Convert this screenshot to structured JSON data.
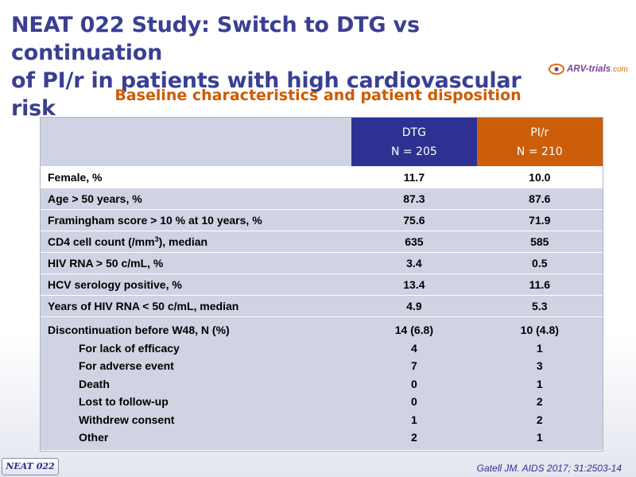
{
  "title_line1": "NEAT 022 Study: Switch to DTG vs continuation",
  "title_line2": "of PI/r in patients with high cardiovascular risk",
  "logo": {
    "name": "ARV-trials",
    "domain": ".com",
    "icon": "arv-trials-logo-icon"
  },
  "subtitle": "Baseline characteristics and patient disposition",
  "table": {
    "columns": [
      {
        "name": "DTG",
        "n": "N = 205",
        "color": "#2e3192"
      },
      {
        "name": "PI/r",
        "n": "N = 210",
        "color": "#cc5e0a"
      }
    ],
    "rows": [
      {
        "label": "Female, %",
        "dtg": "11.7",
        "pir": "10.0"
      },
      {
        "label": "Age > 50 years, %",
        "dtg": "87.3",
        "pir": "87.6"
      },
      {
        "label": "Framingham score > 10 % at 10 years, %",
        "dtg": "75.6",
        "pir": "71.9"
      },
      {
        "label_pre": "CD4 cell count (/mm",
        "label_sup": "3",
        "label_post": "), median",
        "dtg": "635",
        "pir": "585"
      },
      {
        "label": "HIV RNA > 50 c/mL, %",
        "dtg": "3.4",
        "pir": "0.5"
      },
      {
        "label": "HCV serology positive, %",
        "dtg": "13.4",
        "pir": "11.6"
      },
      {
        "label": "Years of HIV RNA < 50 c/mL, median",
        "dtg": "4.9",
        "pir": "5.3"
      }
    ],
    "discontinuation": {
      "label": "Discontinuation before W48, N (%)",
      "dtg": "14 (6.8)",
      "pir": "10 (4.8)",
      "reasons": [
        {
          "label": "For lack of efficacy",
          "dtg": "4",
          "pir": "1"
        },
        {
          "label": "For adverse event",
          "dtg": "7",
          "pir": "3"
        },
        {
          "label": "Death",
          "dtg": "0",
          "pir": "1"
        },
        {
          "label": "Lost to follow-up",
          "dtg": "0",
          "pir": "2"
        },
        {
          "label": "Withdrew consent",
          "dtg": "1",
          "pir": "2"
        },
        {
          "label": "Other",
          "dtg": "2",
          "pir": "1"
        }
      ]
    }
  },
  "badge": "NEAT 022",
  "citation": "Gatell JM. AIDS 2017; 31:2503-14",
  "colors": {
    "title": "#3a3f93",
    "subtitle": "#d05a00",
    "row_bg": "#cfd3e3"
  }
}
